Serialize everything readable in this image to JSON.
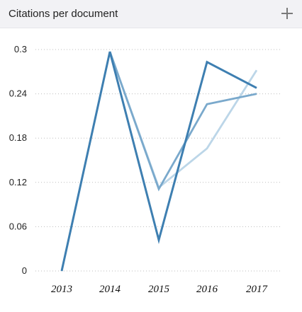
{
  "widget": {
    "title": "Citations per document"
  },
  "colors": {
    "series_dark": "#3e7fb1",
    "series_mid": "#7aa9cc",
    "series_light": "#bcd6e8",
    "grid": "#bdbdbd",
    "header_bg": "#f2f2f5"
  },
  "icons": {
    "add": "plus-icon"
  },
  "chart_data": {
    "type": "line",
    "title": "Citations per document",
    "xlabel": "",
    "ylabel": "",
    "x": [
      2013,
      2014,
      2015,
      2016,
      2017
    ],
    "x_tick_labels": [
      "2013",
      "2014",
      "2015",
      "2016",
      "2017"
    ],
    "y_tick_labels": [
      "0",
      "0.06",
      "0.12",
      "0.18",
      "0.24",
      "0.3"
    ],
    "y_ticks": [
      0,
      0.06,
      0.12,
      0.18,
      0.24,
      0.3
    ],
    "ylim": [
      0,
      0.3
    ],
    "grid": true,
    "legend": "none",
    "series": [
      {
        "color": "#bcd6e8",
        "values": [
          null,
          0.297,
          0.113,
          0.166,
          0.272
        ]
      },
      {
        "color": "#7aa9cc",
        "values": [
          null,
          0.297,
          0.111,
          0.226,
          0.24
        ]
      },
      {
        "color": "#3e7fb1",
        "values": [
          0,
          0.297,
          0.042,
          0.283,
          0.248
        ]
      }
    ]
  }
}
